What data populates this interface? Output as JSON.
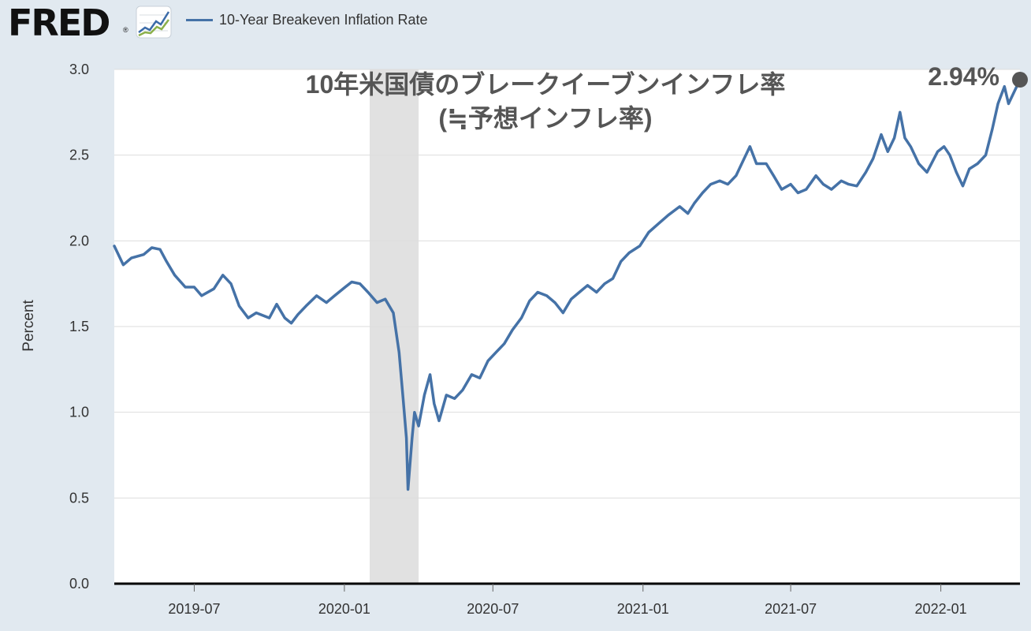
{
  "header": {
    "logo_text": "FRED",
    "logo_mark": "®",
    "logo_icon": "line-chart-icon",
    "legend_label": "10-Year Breakeven Inflation Rate"
  },
  "colors": {
    "series": "#4572a7",
    "recession": "#e1e1e1",
    "background": "#e1e9f0",
    "plot_background": "#ffffff",
    "annotation": "#555555",
    "grid": "#dddddd"
  },
  "chart_data": {
    "type": "line",
    "title": "10年米国債のブレークイーブンインフレ率",
    "subtitle": "(≒予想インフレ率)",
    "ylabel": "Percent",
    "xlabel": "",
    "ylim": [
      0,
      3.0
    ],
    "xlim": [
      "2019-03-25",
      "2022-04-08"
    ],
    "y_ticks": [
      "0.0",
      "0.5",
      "1.0",
      "1.5",
      "2.0",
      "2.5",
      "3.0"
    ],
    "x_ticks": [
      "2019-07",
      "2020-01",
      "2020-07",
      "2021-01",
      "2021-07",
      "2022-01"
    ],
    "grid": true,
    "legend": "top-left",
    "recession_band": [
      "2020-02-01",
      "2020-04-01"
    ],
    "last_value_label": "2.94%",
    "series": [
      {
        "name": "10-Year Breakeven Inflation Rate",
        "points": [
          [
            "2019-03-25",
            1.97
          ],
          [
            "2019-04-05",
            1.86
          ],
          [
            "2019-04-15",
            1.9
          ],
          [
            "2019-04-30",
            1.92
          ],
          [
            "2019-05-10",
            1.96
          ],
          [
            "2019-05-20",
            1.95
          ],
          [
            "2019-05-28",
            1.88
          ],
          [
            "2019-06-07",
            1.8
          ],
          [
            "2019-06-20",
            1.73
          ],
          [
            "2019-07-01",
            1.73
          ],
          [
            "2019-07-10",
            1.68
          ],
          [
            "2019-07-25",
            1.72
          ],
          [
            "2019-08-05",
            1.8
          ],
          [
            "2019-08-15",
            1.75
          ],
          [
            "2019-08-25",
            1.62
          ],
          [
            "2019-09-05",
            1.55
          ],
          [
            "2019-09-15",
            1.58
          ],
          [
            "2019-10-01",
            1.55
          ],
          [
            "2019-10-10",
            1.63
          ],
          [
            "2019-10-20",
            1.55
          ],
          [
            "2019-10-28",
            1.52
          ],
          [
            "2019-11-05",
            1.57
          ],
          [
            "2019-11-15",
            1.62
          ],
          [
            "2019-11-28",
            1.68
          ],
          [
            "2019-12-10",
            1.64
          ],
          [
            "2019-12-20",
            1.68
          ],
          [
            "2020-01-02",
            1.73
          ],
          [
            "2020-01-10",
            1.76
          ],
          [
            "2020-01-20",
            1.75
          ],
          [
            "2020-01-30",
            1.7
          ],
          [
            "2020-02-10",
            1.64
          ],
          [
            "2020-02-20",
            1.66
          ],
          [
            "2020-03-01",
            1.58
          ],
          [
            "2020-03-08",
            1.35
          ],
          [
            "2020-03-13",
            1.08
          ],
          [
            "2020-03-17",
            0.85
          ],
          [
            "2020-03-19",
            0.55
          ],
          [
            "2020-03-24",
            0.85
          ],
          [
            "2020-03-27",
            1.0
          ],
          [
            "2020-04-01",
            0.92
          ],
          [
            "2020-04-08",
            1.1
          ],
          [
            "2020-04-15",
            1.22
          ],
          [
            "2020-04-20",
            1.05
          ],
          [
            "2020-04-26",
            0.95
          ],
          [
            "2020-05-05",
            1.1
          ],
          [
            "2020-05-15",
            1.08
          ],
          [
            "2020-05-25",
            1.13
          ],
          [
            "2020-06-05",
            1.22
          ],
          [
            "2020-06-15",
            1.2
          ],
          [
            "2020-06-25",
            1.3
          ],
          [
            "2020-07-05",
            1.35
          ],
          [
            "2020-07-15",
            1.4
          ],
          [
            "2020-07-25",
            1.48
          ],
          [
            "2020-08-05",
            1.55
          ],
          [
            "2020-08-15",
            1.65
          ],
          [
            "2020-08-25",
            1.7
          ],
          [
            "2020-09-05",
            1.68
          ],
          [
            "2020-09-15",
            1.64
          ],
          [
            "2020-09-25",
            1.58
          ],
          [
            "2020-10-05",
            1.66
          ],
          [
            "2020-10-15",
            1.7
          ],
          [
            "2020-10-25",
            1.74
          ],
          [
            "2020-11-05",
            1.7
          ],
          [
            "2020-11-15",
            1.75
          ],
          [
            "2020-11-25",
            1.78
          ],
          [
            "2020-12-05",
            1.88
          ],
          [
            "2020-12-15",
            1.93
          ],
          [
            "2020-12-28",
            1.97
          ],
          [
            "2021-01-08",
            2.05
          ],
          [
            "2021-01-20",
            2.1
          ],
          [
            "2021-02-01",
            2.15
          ],
          [
            "2021-02-15",
            2.2
          ],
          [
            "2021-02-25",
            2.16
          ],
          [
            "2021-03-05",
            2.22
          ],
          [
            "2021-03-15",
            2.28
          ],
          [
            "2021-03-25",
            2.33
          ],
          [
            "2021-04-05",
            2.35
          ],
          [
            "2021-04-15",
            2.33
          ],
          [
            "2021-04-25",
            2.38
          ],
          [
            "2021-05-05",
            2.48
          ],
          [
            "2021-05-12",
            2.55
          ],
          [
            "2021-05-20",
            2.45
          ],
          [
            "2021-06-01",
            2.45
          ],
          [
            "2021-06-10",
            2.38
          ],
          [
            "2021-06-20",
            2.3
          ],
          [
            "2021-07-01",
            2.33
          ],
          [
            "2021-07-10",
            2.28
          ],
          [
            "2021-07-20",
            2.3
          ],
          [
            "2021-08-01",
            2.38
          ],
          [
            "2021-08-10",
            2.33
          ],
          [
            "2021-08-20",
            2.3
          ],
          [
            "2021-09-01",
            2.35
          ],
          [
            "2021-09-10",
            2.33
          ],
          [
            "2021-09-20",
            2.32
          ],
          [
            "2021-10-01",
            2.4
          ],
          [
            "2021-10-10",
            2.48
          ],
          [
            "2021-10-20",
            2.62
          ],
          [
            "2021-10-28",
            2.52
          ],
          [
            "2021-11-05",
            2.6
          ],
          [
            "2021-11-12",
            2.75
          ],
          [
            "2021-11-18",
            2.6
          ],
          [
            "2021-11-25",
            2.55
          ],
          [
            "2021-12-05",
            2.45
          ],
          [
            "2021-12-15",
            2.4
          ],
          [
            "2021-12-28",
            2.52
          ],
          [
            "2022-01-05",
            2.55
          ],
          [
            "2022-01-12",
            2.5
          ],
          [
            "2022-01-20",
            2.4
          ],
          [
            "2022-01-28",
            2.32
          ],
          [
            "2022-02-05",
            2.42
          ],
          [
            "2022-02-15",
            2.45
          ],
          [
            "2022-02-25",
            2.5
          ],
          [
            "2022-03-05",
            2.65
          ],
          [
            "2022-03-12",
            2.8
          ],
          [
            "2022-03-20",
            2.9
          ],
          [
            "2022-03-25",
            2.8
          ],
          [
            "2022-04-08",
            2.94
          ]
        ]
      }
    ]
  }
}
